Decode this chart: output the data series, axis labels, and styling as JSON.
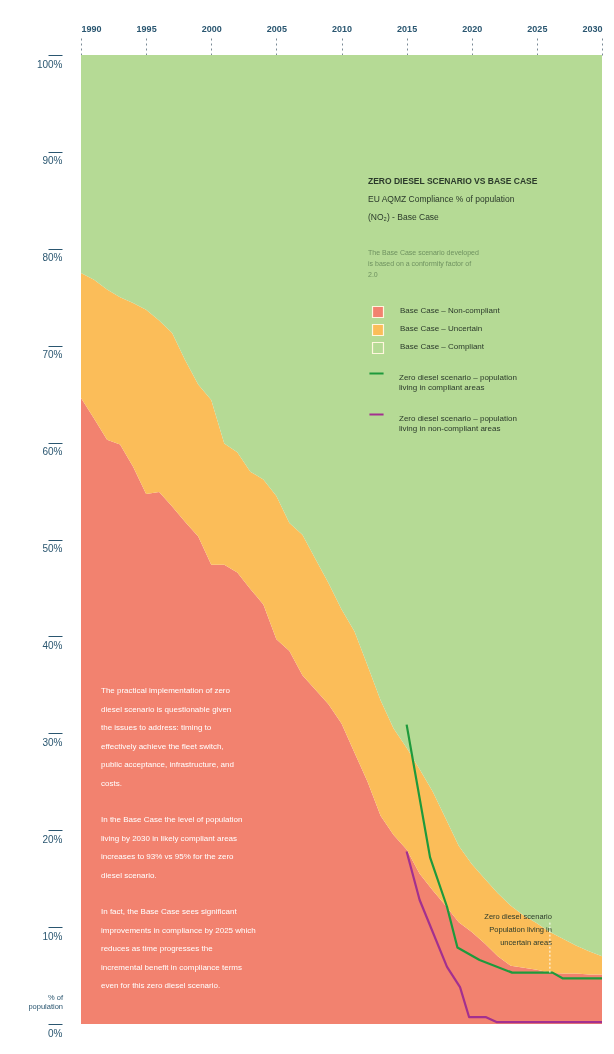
{
  "chart_data": {
    "type": "area",
    "title": "ZERO DIESEL SCENARIO VS BASE CASE",
    "subtitle": "EU AQMZ Compliance % of population (NO₂) - Base Case",
    "ylabel": "% of population",
    "stacked": true,
    "x": [
      1990,
      1991,
      1992,
      1993,
      1994,
      1995,
      1996,
      1997,
      1998,
      1999,
      2000,
      2001,
      2002,
      2003,
      2004,
      2005,
      2006,
      2007,
      2008,
      2009,
      2010,
      2011,
      2012,
      2013,
      2014,
      2015,
      2016,
      2017,
      2018,
      2019,
      2020,
      2021,
      2022,
      2023,
      2024,
      2025,
      2026,
      2027,
      2028,
      2029,
      2030
    ],
    "xlim": [
      1990,
      2030
    ],
    "xticks": [
      1990,
      1995,
      2000,
      2005,
      2010,
      2015,
      2020,
      2025,
      2030
    ],
    "ylim": [
      0,
      100
    ],
    "yticks": [
      {
        "value": 0,
        "label": "0%"
      },
      {
        "value": 10,
        "label": "10%"
      },
      {
        "value": 20,
        "label": "20%"
      },
      {
        "value": 30,
        "label": "30%"
      },
      {
        "value": 40,
        "label": "40%"
      },
      {
        "value": 50,
        "label": "50%"
      },
      {
        "value": 60,
        "label": "60%"
      },
      {
        "value": 70,
        "label": "70%"
      },
      {
        "value": 80,
        "label": "80%"
      },
      {
        "value": 90,
        "label": "90%"
      },
      {
        "value": 100,
        "label": "100%"
      }
    ],
    "grid": false,
    "legend": "top right",
    "series": [
      {
        "name": "Base Case – Non-compliant",
        "color": "#f2826f",
        "values": [
          64.6,
          62.5,
          60.3,
          59.8,
          57.5,
          54.7,
          54.9,
          53.4,
          51.8,
          50.3,
          47.4,
          47.4,
          46.6,
          44.9,
          43.3,
          39.7,
          38.5,
          36.0,
          34.5,
          33.0,
          31.0,
          28.0,
          25.0,
          21.5,
          19.5,
          18.0,
          15.5,
          13.8,
          12.2,
          10.5,
          9.5,
          8.3,
          7.0,
          6.0,
          5.8,
          5.6,
          5.3,
          5.2,
          5.2,
          5.1,
          5.1
        ]
      },
      {
        "name": "Base Case – Uncertain",
        "color": "#fbbd59",
        "values": [
          12.9,
          14.3,
          15.5,
          15.2,
          16.9,
          19.0,
          17.7,
          17.9,
          16.7,
          15.7,
          17.0,
          12.5,
          12.4,
          12.1,
          12.9,
          14.8,
          13.2,
          14.5,
          13.5,
          12.5,
          11.8,
          12.5,
          12.0,
          11.9,
          11.0,
          10.5,
          10.8,
          10.2,
          9.0,
          7.9,
          7.0,
          6.7,
          6.5,
          6.2,
          5.4,
          4.8,
          4.2,
          3.6,
          2.9,
          2.4,
          1.9
        ]
      },
      {
        "name": "Base Case – Compliant",
        "color": "#b5da95",
        "values": [
          22.5,
          23.2,
          24.2,
          25.0,
          25.6,
          26.3,
          27.4,
          28.7,
          31.5,
          34.0,
          35.6,
          40.1,
          41.0,
          43.0,
          43.8,
          45.5,
          48.3,
          49.5,
          52.0,
          54.5,
          57.2,
          59.5,
          63.0,
          66.6,
          69.5,
          71.5,
          73.7,
          76.0,
          78.8,
          81.6,
          83.5,
          85.0,
          86.5,
          87.8,
          88.8,
          89.6,
          90.5,
          91.2,
          91.9,
          92.5,
          93.0
        ]
      },
      {
        "name": "Zero diesel scenario – population living in compliant areas",
        "type": "line",
        "color": "#1e9a3c",
        "x": [
          2015.0,
          2016.8,
          2018.1,
          2018.9,
          2020.6,
          2023.1,
          2026.2,
          2027.0,
          2030
        ],
        "values": [
          30.9,
          17.2,
          12.1,
          7.9,
          6.6,
          5.3,
          5.3,
          4.7,
          4.7
        ]
      },
      {
        "name": "Zero diesel scenario – population living in non-compliant areas",
        "type": "line",
        "color": "#a3308f",
        "x": [
          2015.0,
          2016.0,
          2018.1,
          2019.1,
          2019.8,
          2021.1,
          2021.9,
          2030
        ],
        "values": [
          17.8,
          12.8,
          5.9,
          3.8,
          0.7,
          0.7,
          0.2,
          0.2
        ]
      }
    ],
    "annotations": [
      "The Base Case scenario developed is based on a conformity factor of 2.0",
      "The practical implementation of zero diesel scenario is questionable given the issues to address: timing to effectively achieve the fleet switch, public acceptance, infrastructure, and costs.",
      "In the Base Case the level of population living by 2030 in likely compliant areas increases to 93% vs 95% for the zero diesel scenario.",
      "In fact, the Base Case sees significant improvements in compliance by 2025 which reduces as time progresses the incremental benefit in compliance terms even for this zero diesel scenario.",
      {
        "text": "Zero diesel scenario Population living in uncertain areas",
        "x": 2026,
        "y": 5.3
      }
    ]
  }
}
